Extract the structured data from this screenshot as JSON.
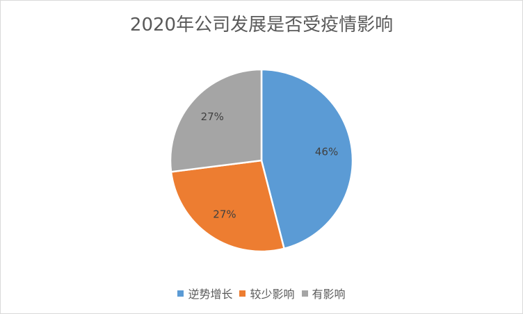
{
  "chart_data": {
    "type": "pie",
    "title": "2020年公司发展是否受疫情影响",
    "categories": [
      "逆势增长",
      "较少影响",
      "有影响"
    ],
    "values": [
      46,
      27,
      27
    ],
    "labels": [
      "46%",
      "27%",
      "27%"
    ],
    "colors": [
      "#5b9bd5",
      "#ed7d31",
      "#a5a5a5"
    ],
    "legend_position": "bottom",
    "start_angle": "12 o'clock",
    "direction": "clockwise"
  }
}
